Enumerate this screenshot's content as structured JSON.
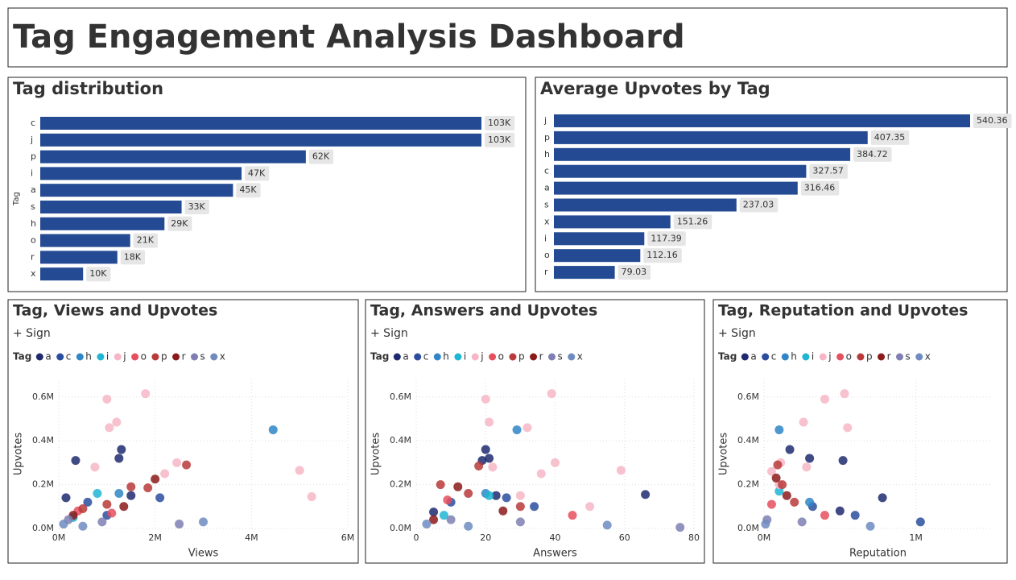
{
  "title": "Tag Engagement Analysis Dashboard",
  "chart_data": [
    {
      "type": "bar",
      "orientation": "horizontal",
      "title": "Tag distribution",
      "y_label": "Tag",
      "color": "#234a92",
      "categories": [
        "c",
        "j",
        "p",
        "i",
        "a",
        "s",
        "h",
        "o",
        "r",
        "x"
      ],
      "values": [
        103000,
        103000,
        62000,
        47000,
        45000,
        33000,
        29000,
        21000,
        18000,
        10000
      ],
      "value_labels": [
        "103K",
        "103K",
        "62K",
        "47K",
        "45K",
        "33K",
        "29K",
        "21K",
        "18K",
        "10K"
      ]
    },
    {
      "type": "bar",
      "orientation": "horizontal",
      "title": "Average Upvotes by Tag",
      "color": "#234a92",
      "categories": [
        "j",
        "p",
        "h",
        "c",
        "a",
        "s",
        "x",
        "i",
        "o",
        "r"
      ],
      "values": [
        540.36,
        407.35,
        384.72,
        327.57,
        316.46,
        237.03,
        151.26,
        117.39,
        112.16,
        79.03
      ]
    },
    {
      "type": "scatter",
      "title": "Tag, Views and Upvotes",
      "subtitle": "+ Sign",
      "legend_title": "Tag",
      "x_label": "Views",
      "y_label": "Upvotes",
      "grid": true,
      "xlim": [
        0,
        6000000
      ],
      "xticks": [
        {
          "value": 0,
          "label": "0M"
        },
        {
          "value": 2000000,
          "label": "2M"
        },
        {
          "value": 4000000,
          "label": "4M"
        },
        {
          "value": 6000000,
          "label": "6M"
        }
      ],
      "ylim": [
        0,
        680000
      ],
      "yticks": [
        {
          "value": 0,
          "label": "0.0M"
        },
        {
          "value": 200000,
          "label": "0.2M"
        },
        {
          "value": 400000,
          "label": "0.4M"
        },
        {
          "value": 600000,
          "label": "0.6M"
        }
      ],
      "series": [
        {
          "name": "a",
          "color": "#1f2a6e",
          "x": [
            350000,
            1300000,
            1250000,
            1500000,
            150000
          ],
          "values": [
            310000,
            360000,
            320000,
            150000,
            140000
          ]
        },
        {
          "name": "c",
          "color": "#2a4d9e",
          "x": [
            2100000,
            600000,
            1000000
          ],
          "values": [
            140000,
            120000,
            60000
          ]
        },
        {
          "name": "h",
          "color": "#2f86c8",
          "x": [
            4450000,
            1250000
          ],
          "values": [
            450000,
            160000
          ]
        },
        {
          "name": "i",
          "color": "#20b5d2",
          "x": [
            800000,
            300000
          ],
          "values": [
            160000,
            50000
          ]
        },
        {
          "name": "j",
          "color": "#f7b6c6",
          "x": [
            1000000,
            1800000,
            1050000,
            1200000,
            750000,
            2450000,
            5000000,
            5250000,
            2200000
          ],
          "values": [
            590000,
            615000,
            460000,
            485000,
            280000,
            300000,
            265000,
            145000,
            250000
          ]
        },
        {
          "name": "o",
          "color": "#e5505e",
          "x": [
            400000,
            1100000
          ],
          "values": [
            80000,
            70000
          ]
        },
        {
          "name": "p",
          "color": "#b83a3a",
          "x": [
            1850000,
            2650000,
            1000000,
            1500000,
            500000
          ],
          "values": [
            185000,
            290000,
            110000,
            190000,
            90000
          ]
        },
        {
          "name": "r",
          "color": "#8b1a1a",
          "x": [
            2000000,
            1350000,
            300000
          ],
          "values": [
            225000,
            100000,
            60000
          ]
        },
        {
          "name": "s",
          "color": "#7f7fb3",
          "x": [
            200000,
            900000,
            2500000
          ],
          "values": [
            40000,
            30000,
            20000
          ]
        },
        {
          "name": "x",
          "color": "#6f8bbf",
          "x": [
            100000,
            500000,
            3000000
          ],
          "values": [
            20000,
            10000,
            30000
          ]
        }
      ]
    },
    {
      "type": "scatter",
      "title": "Tag, Answers and Upvotes",
      "subtitle": "+ Sign",
      "legend_title": "Tag",
      "x_label": "Answers",
      "y_label": "Upvotes",
      "grid": true,
      "xlim": [
        0,
        80
      ],
      "xticks": [
        0,
        20,
        40,
        60,
        80
      ],
      "ylim": [
        0,
        680000
      ],
      "yticks": [
        {
          "value": 0,
          "label": "0.0M"
        },
        {
          "value": 200000,
          "label": "0.2M"
        },
        {
          "value": 400000,
          "label": "0.4M"
        },
        {
          "value": 600000,
          "label": "0.6M"
        }
      ],
      "series": [
        {
          "name": "a",
          "color": "#1f2a6e",
          "x": [
            20,
            19,
            21,
            66,
            23,
            5
          ],
          "values": [
            360000,
            310000,
            320000,
            155000,
            150000,
            75000
          ]
        },
        {
          "name": "c",
          "color": "#2a4d9e",
          "x": [
            26,
            10,
            34
          ],
          "values": [
            140000,
            120000,
            100000
          ]
        },
        {
          "name": "h",
          "color": "#2f86c8",
          "x": [
            29,
            20
          ],
          "values": [
            450000,
            160000
          ]
        },
        {
          "name": "i",
          "color": "#20b5d2",
          "x": [
            21,
            8
          ],
          "values": [
            150000,
            60000
          ]
        },
        {
          "name": "j",
          "color": "#f7b6c6",
          "x": [
            20,
            39,
            21,
            32,
            40,
            36,
            59,
            22,
            30,
            50
          ],
          "values": [
            590000,
            615000,
            485000,
            460000,
            300000,
            250000,
            265000,
            280000,
            150000,
            100000
          ]
        },
        {
          "name": "o",
          "color": "#e5505e",
          "x": [
            9,
            45
          ],
          "values": [
            130000,
            60000
          ]
        },
        {
          "name": "p",
          "color": "#b83a3a",
          "x": [
            18,
            7,
            15,
            30
          ],
          "values": [
            285000,
            200000,
            160000,
            100000
          ]
        },
        {
          "name": "r",
          "color": "#8b1a1a",
          "x": [
            12,
            25,
            5
          ],
          "values": [
            190000,
            80000,
            40000
          ]
        },
        {
          "name": "s",
          "color": "#7f7fb3",
          "x": [
            10,
            30,
            76
          ],
          "values": [
            40000,
            30000,
            5000
          ]
        },
        {
          "name": "x",
          "color": "#6f8bbf",
          "x": [
            3,
            15,
            55
          ],
          "values": [
            20000,
            10000,
            15000
          ]
        }
      ]
    },
    {
      "type": "scatter",
      "title": "Tag, Reputation and Upvotes",
      "subtitle": "+ Sign",
      "legend_title": "Tag",
      "x_label": "Reputation",
      "y_label": "Upvotes",
      "grid": true,
      "xlim": [
        0,
        1500000
      ],
      "xticks": [
        {
          "value": 0,
          "label": "0M"
        },
        {
          "value": 1000000,
          "label": "1M"
        }
      ],
      "ylim": [
        0,
        680000
      ],
      "yticks": [
        {
          "value": 0,
          "label": "0.0M"
        },
        {
          "value": 200000,
          "label": "0.2M"
        },
        {
          "value": 400000,
          "label": "0.4M"
        },
        {
          "value": 600000,
          "label": "0.6M"
        }
      ],
      "series": [
        {
          "name": "a",
          "color": "#1f2a6e",
          "x": [
            520000,
            170000,
            300000,
            780000,
            500000
          ],
          "values": [
            310000,
            360000,
            320000,
            140000,
            80000
          ]
        },
        {
          "name": "c",
          "color": "#2a4d9e",
          "x": [
            320000,
            1030000,
            600000
          ],
          "values": [
            100000,
            30000,
            60000
          ]
        },
        {
          "name": "h",
          "color": "#2f86c8",
          "x": [
            100000,
            300000
          ],
          "values": [
            450000,
            120000
          ]
        },
        {
          "name": "i",
          "color": "#20b5d2",
          "x": [
            100000
          ],
          "values": [
            170000
          ]
        },
        {
          "name": "j",
          "color": "#f7b6c6",
          "x": [
            400000,
            530000,
            260000,
            550000,
            50000,
            280000,
            110000,
            100000
          ],
          "values": [
            590000,
            615000,
            485000,
            460000,
            260000,
            280000,
            300000,
            200000
          ]
        },
        {
          "name": "o",
          "color": "#e5505e",
          "x": [
            50000,
            400000
          ],
          "values": [
            110000,
            60000
          ]
        },
        {
          "name": "p",
          "color": "#b83a3a",
          "x": [
            90000,
            120000,
            200000
          ],
          "values": [
            290000,
            200000,
            120000
          ]
        },
        {
          "name": "r",
          "color": "#8b1a1a",
          "x": [
            80000,
            150000
          ],
          "values": [
            230000,
            150000
          ]
        },
        {
          "name": "s",
          "color": "#7f7fb3",
          "x": [
            20000,
            250000
          ],
          "values": [
            40000,
            30000
          ]
        },
        {
          "name": "x",
          "color": "#6f8bbf",
          "x": [
            10000,
            700000
          ],
          "values": [
            20000,
            10000
          ]
        }
      ]
    }
  ]
}
